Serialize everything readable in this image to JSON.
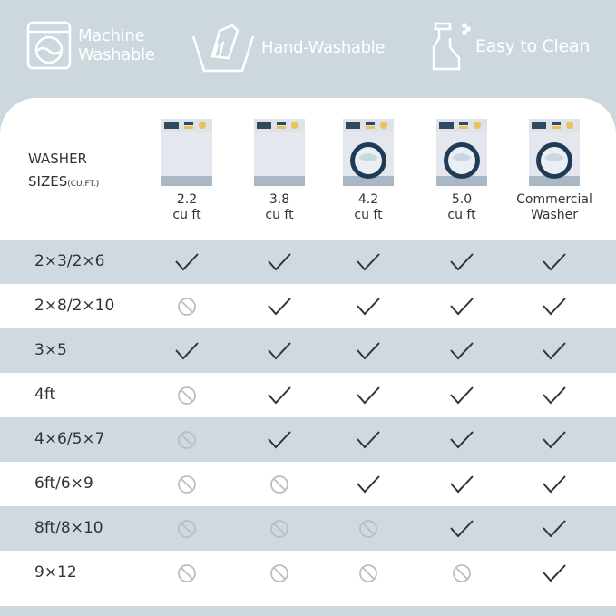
{
  "features": [
    {
      "label_line1": "Machine",
      "label_line2": "Washable",
      "icon": "washing-machine-icon"
    },
    {
      "label": "Hand-Washable",
      "icon": "hand-wash-icon"
    },
    {
      "label": "Easy to Clean",
      "icon": "spray-bottle-icon"
    }
  ],
  "header": {
    "title": "WASHER",
    "title2": "SIZES",
    "unit": "(CU.FT.)"
  },
  "columns": [
    {
      "line1": "2.2",
      "line2": "cu ft",
      "drum": false
    },
    {
      "line1": "3.8",
      "line2": "cu ft",
      "drum": false
    },
    {
      "line1": "4.2",
      "line2": "cu ft",
      "drum": true
    },
    {
      "line1": "5.0",
      "line2": "cu ft",
      "drum": true
    },
    {
      "line1": "Commercial",
      "line2": "Washer",
      "drum": true
    }
  ],
  "rows": [
    {
      "label": "2×3/2×6",
      "fits": [
        true,
        true,
        true,
        true,
        true
      ]
    },
    {
      "label": "2×8/2×10",
      "fits": [
        false,
        true,
        true,
        true,
        true
      ]
    },
    {
      "label": "3×5",
      "fits": [
        true,
        true,
        true,
        true,
        true
      ]
    },
    {
      "label": "4ft",
      "fits": [
        false,
        true,
        true,
        true,
        true
      ]
    },
    {
      "label": "4×6/5×7",
      "fits": [
        false,
        true,
        true,
        true,
        true
      ]
    },
    {
      "label": "6ft/6×9",
      "fits": [
        false,
        false,
        true,
        true,
        true
      ]
    },
    {
      "label": "8ft/8×10",
      "fits": [
        false,
        false,
        false,
        true,
        true
      ]
    },
    {
      "label": "9×12",
      "fits": [
        false,
        false,
        false,
        false,
        true
      ]
    }
  ],
  "colors": {
    "background": "#cdd8de",
    "stripe": "#cfd9df",
    "check": "#333333",
    "no": "#b8bfc4"
  }
}
